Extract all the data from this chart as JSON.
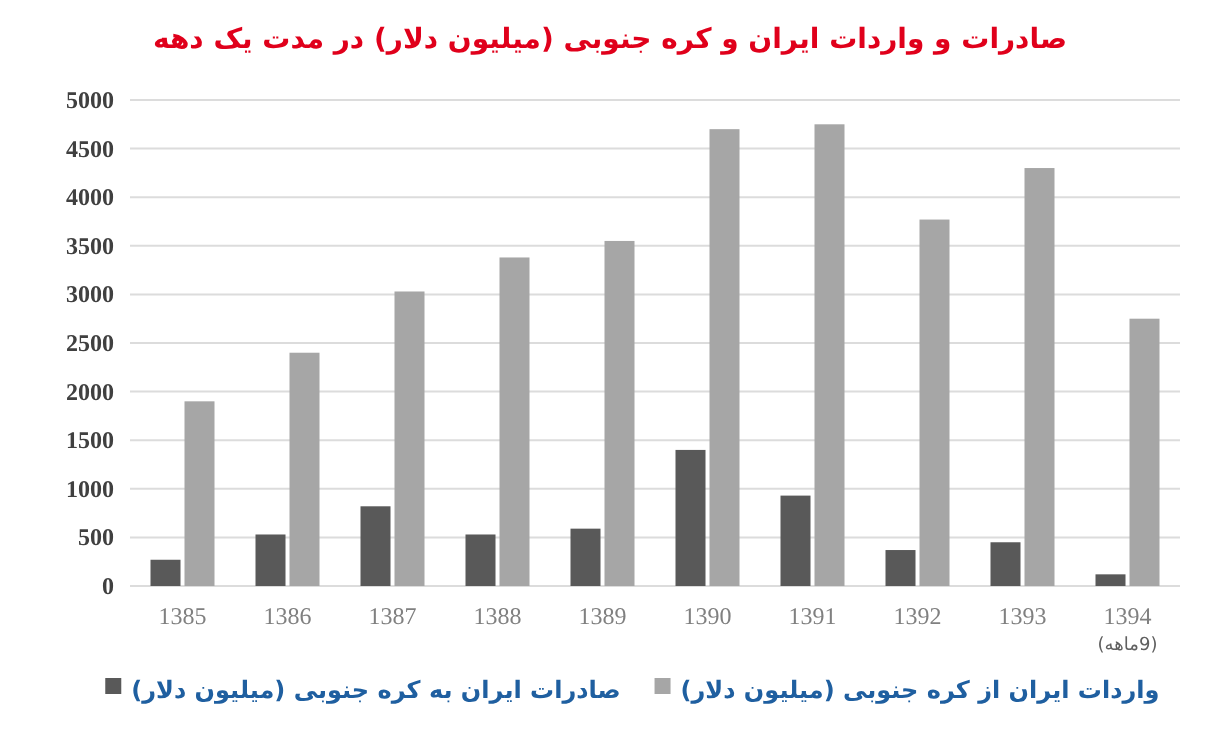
{
  "chart_data": {
    "type": "bar",
    "title": "صادرات و واردات ایران و کره جنوبی (میلیون دلار) در مدت یک دهه",
    "categories": [
      "1385",
      "1386",
      "1387",
      "1388",
      "1389",
      "1390",
      "1391",
      "1392",
      "1393",
      "1394"
    ],
    "series": [
      {
        "name": "صادرات ایران به کره جنوبی (میلیون دلار)",
        "color": "#595959",
        "values": [
          270,
          530,
          820,
          530,
          590,
          1400,
          930,
          370,
          450,
          120
        ]
      },
      {
        "name": "واردات ایران از کره جنوبی (میلیون دلار)",
        "color": "#a6a6a6",
        "values": [
          1900,
          2400,
          3030,
          3380,
          3550,
          4700,
          4750,
          3770,
          4300,
          2750
        ]
      }
    ],
    "annotations": [
      "(9ماهه)"
    ],
    "ylim": [
      0,
      5000
    ],
    "yticks": [
      0,
      500,
      1000,
      1500,
      2000,
      2500,
      3000,
      3500,
      4000,
      4500,
      5000
    ],
    "grid": "y",
    "legend": "bottom"
  }
}
